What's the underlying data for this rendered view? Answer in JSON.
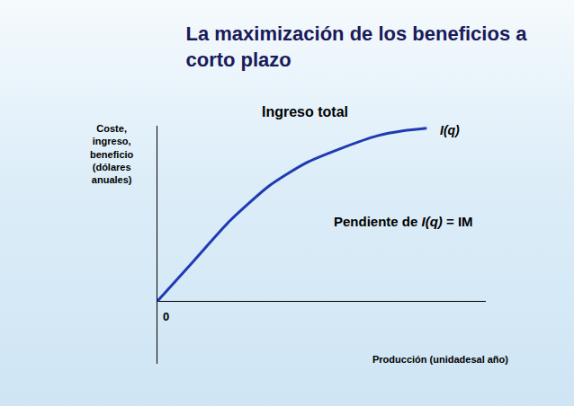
{
  "chart_data": {
    "type": "line",
    "title": "La maximización de los beneficios a corto plazo",
    "x_label": "Producción (unidadesal año)",
    "y_label": "Coste, ingreso, beneficio (dólares anuales)",
    "x": [
      0,
      1.1,
      2.2,
      3.4,
      4.5,
      5.6,
      6.7,
      7.5,
      8.2
    ],
    "series": [
      {
        "name": "I(q)",
        "color": "#1f3bb3",
        "values": [
          0,
          1.6,
          3.2,
          4.6,
          5.5,
          6.1,
          6.6,
          6.8,
          6.9
        ]
      }
    ],
    "xlim": [
      0,
      10
    ],
    "ylim": [
      -2.5,
      7
    ],
    "xticks": [],
    "yticks": [],
    "tick_labels": false,
    "grid": false,
    "annotations": {
      "curve_title": "Ingreso total",
      "slope": "Pendiente de I(q) = IM",
      "origin": "0"
    }
  }
}
